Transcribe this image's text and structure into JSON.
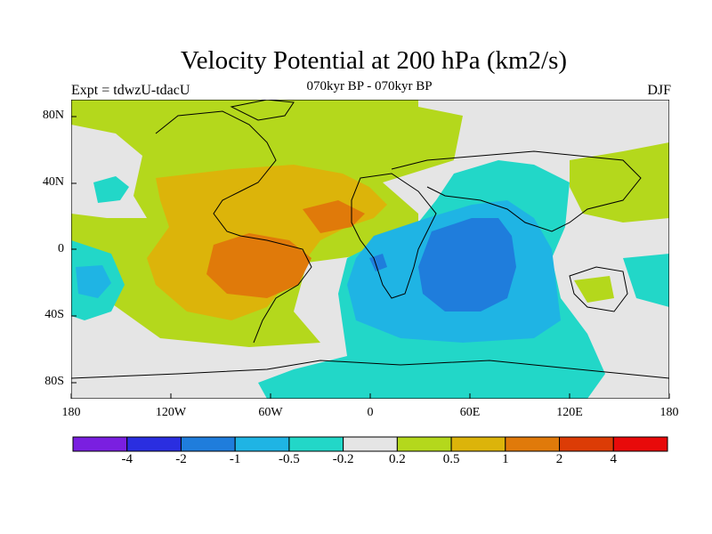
{
  "title": "Velocity Potential at 200 hPa (km2/s)",
  "subtitle": "070kyr BP - 070kyr BP",
  "left_label": "Expt = tdwzU-tdacU",
  "right_label": "DJF",
  "map": {
    "projection": "cylindrical equidistant",
    "lon_range": [
      -180,
      180
    ],
    "lat_range": [
      -90,
      90
    ],
    "background_color": "#e5e5e5",
    "lat_ticks": [
      "80N",
      "40N",
      "0",
      "40S",
      "80S"
    ],
    "lon_ticks": [
      "180",
      "120W",
      "60W",
      "0",
      "60E",
      "120E",
      "180"
    ]
  },
  "colorbar": {
    "colors": [
      "#7a1fe0",
      "#2a2ee0",
      "#1f7ddc",
      "#1fb4e4",
      "#22d7c8",
      "#e5e5e5",
      "#b4d81c",
      "#dcb40a",
      "#e07a0a",
      "#dc3c06",
      "#e80a0a"
    ],
    "labels": [
      "-4",
      "-2",
      "-1",
      "-0.5",
      "-0.2",
      "0.2",
      "0.5",
      "1",
      "2",
      "4"
    ]
  }
}
